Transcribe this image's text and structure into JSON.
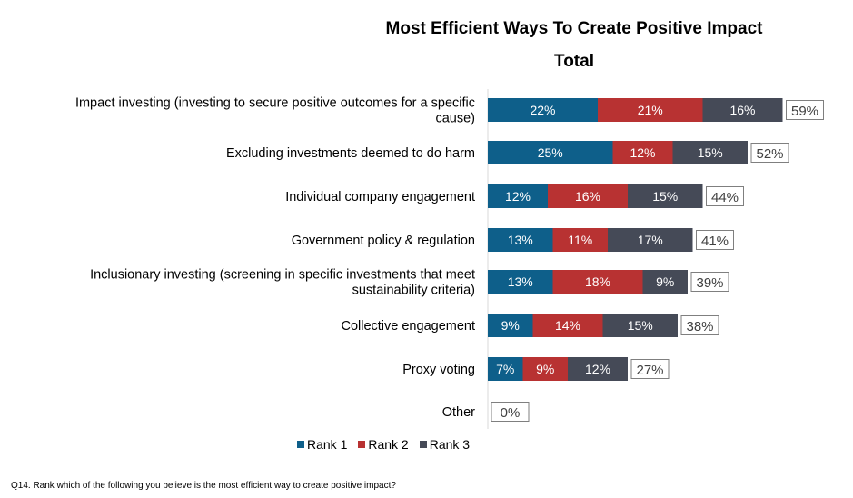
{
  "header": {
    "title": "Most Efficient Ways To Create Positive Impact",
    "subtitle": "Total"
  },
  "colors": {
    "rank1": "#0e5f8a",
    "rank2": "#b83232",
    "rank3": "#454a57",
    "total_border": "#7f7f7f"
  },
  "chart_data": {
    "type": "bar",
    "orientation": "horizontal",
    "stacked": true,
    "title": "Most Efficient Ways To Create Positive Impact",
    "subtitle": "Total",
    "categories": [
      [
        "Impact investing (investing to secure positive outcomes for a specific",
        "cause)"
      ],
      [
        "Excluding investments deemed to do harm"
      ],
      [
        "Individual company engagement "
      ],
      [
        "Government policy & regulation"
      ],
      [
        "Inclusionary investing (screening in specific investments that meet",
        "sustainability criteria)"
      ],
      [
        "Collective engagement"
      ],
      [
        "Proxy voting"
      ],
      [
        "Other"
      ]
    ],
    "series": [
      {
        "name": "Rank 1",
        "color": "#0e5f8a",
        "values": [
          22,
          25,
          12,
          13,
          13,
          9,
          7,
          0
        ]
      },
      {
        "name": "Rank 2",
        "color": "#b83232",
        "values": [
          21,
          12,
          16,
          11,
          18,
          14,
          9,
          0
        ]
      },
      {
        "name": "Rank 3",
        "color": "#454a57",
        "values": [
          16,
          15,
          15,
          17,
          9,
          15,
          12,
          0
        ]
      }
    ],
    "segment_labels": [
      [
        "22%",
        "21%",
        "16%"
      ],
      [
        "25%",
        "12%",
        "15%"
      ],
      [
        "12%",
        "16%",
        "15%"
      ],
      [
        "13%",
        "11%",
        "17%"
      ],
      [
        "13%",
        "18%",
        "9%"
      ],
      [
        "9%",
        "14%",
        "15%"
      ],
      [
        "7%",
        "9%",
        "12%"
      ],
      [
        "",
        "",
        ""
      ]
    ],
    "totals": [
      "59%",
      "52%",
      "44%",
      "41%",
      "39%",
      "38%",
      "27%",
      "0%"
    ],
    "xlim": [
      0,
      100
    ],
    "legend_position": "bottom"
  },
  "legend": {
    "items": [
      {
        "label": "Rank 1",
        "color": "#0e5f8a"
      },
      {
        "label": "Rank 2",
        "color": "#b83232"
      },
      {
        "label": "Rank 3",
        "color": "#454a57"
      }
    ]
  },
  "footnote": "Q14. Rank which of the following you believe is the most efficient way to create positive impact?"
}
